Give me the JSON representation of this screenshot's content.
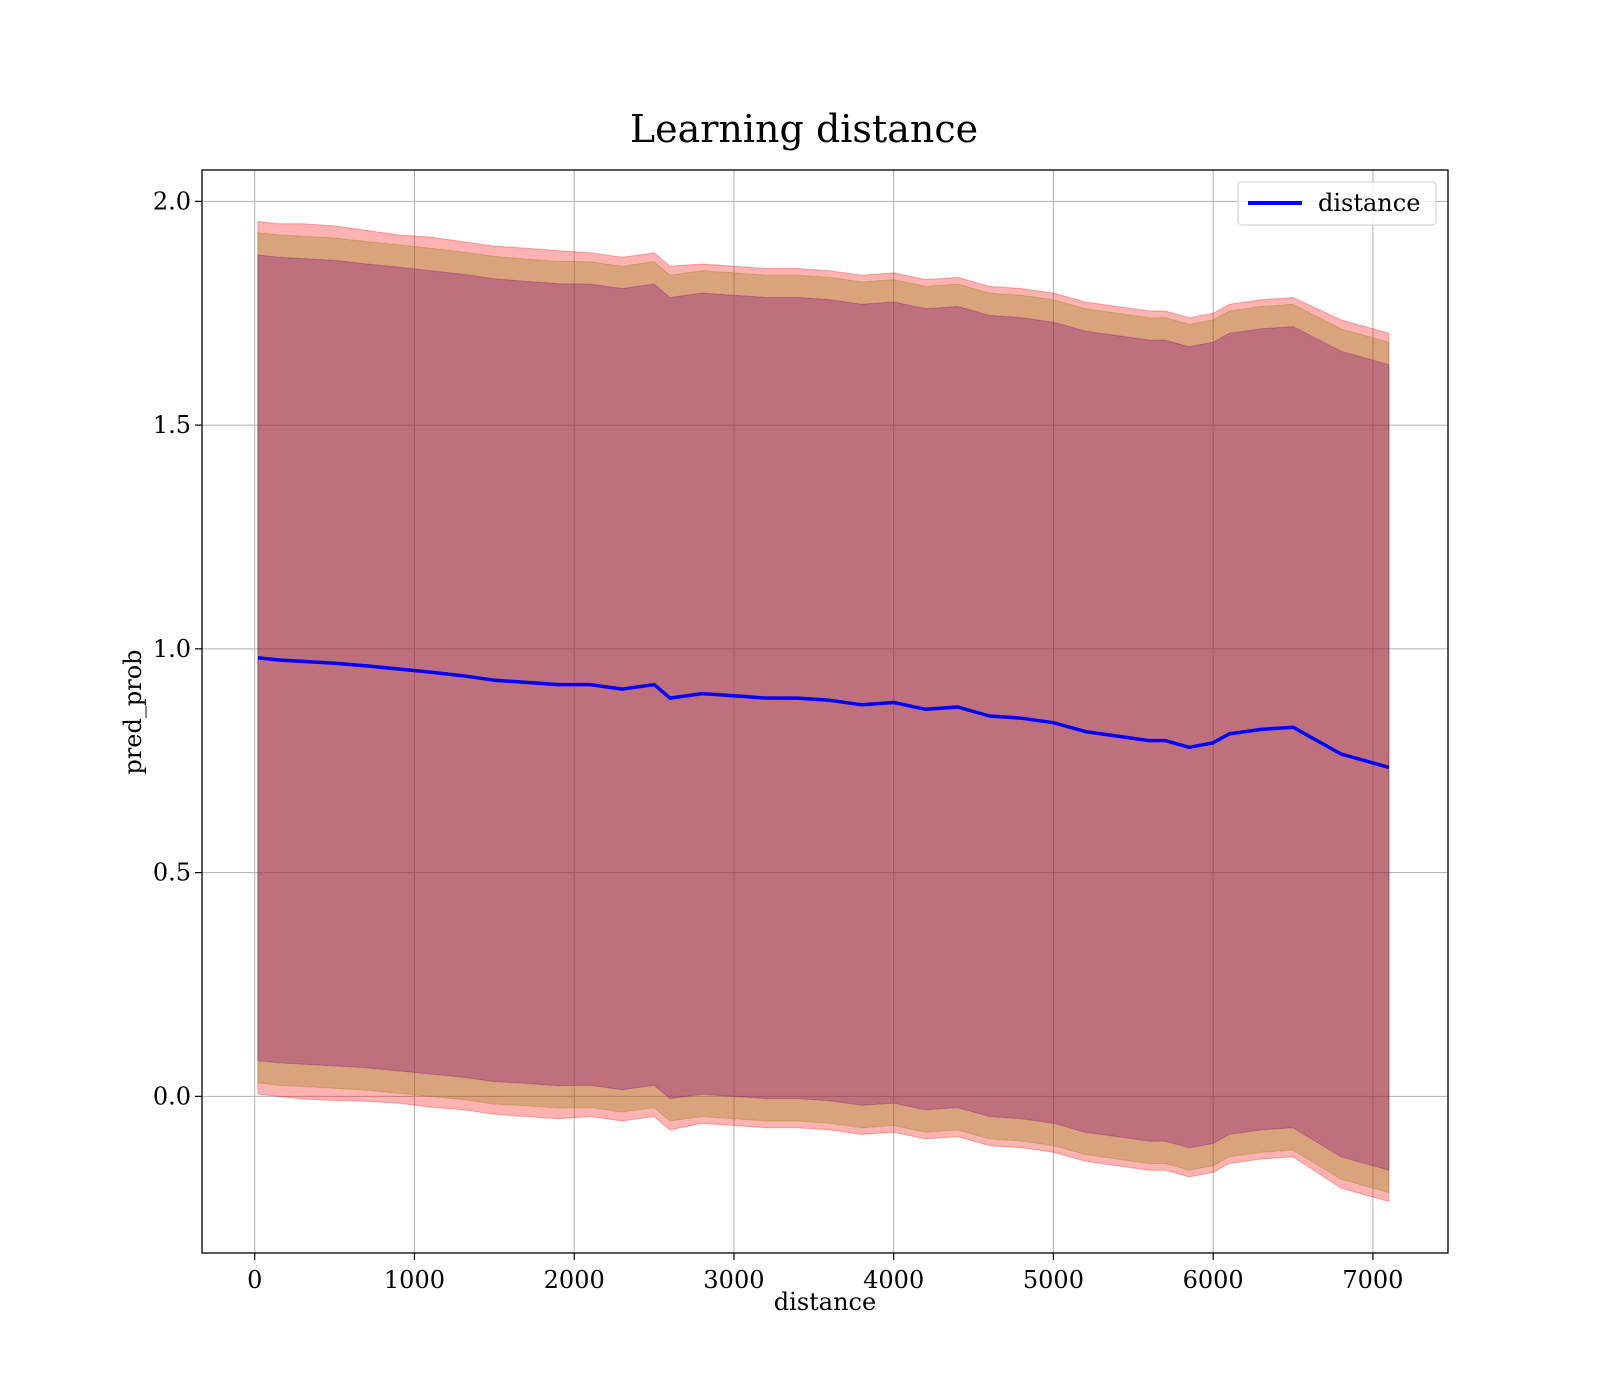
{
  "chart_data": {
    "type": "line",
    "title": "Learning distance",
    "xlabel": "distance",
    "ylabel": "pred_prob",
    "xlim": [
      -330,
      7470
    ],
    "ylim": [
      -0.35,
      2.07
    ],
    "xticks": [
      0,
      1000,
      2000,
      3000,
      4000,
      5000,
      6000,
      7000
    ],
    "xtick_labels": [
      "0",
      "1000",
      "2000",
      "3000",
      "4000",
      "5000",
      "6000",
      "7000"
    ],
    "yticks": [
      0.0,
      0.5,
      1.0,
      1.5,
      2.0
    ],
    "ytick_labels": [
      "0.0",
      "0.5",
      "1.0",
      "1.5",
      "2.0"
    ],
    "grid": true,
    "legend": {
      "position": "top-right",
      "entries": [
        "distance"
      ]
    },
    "series": [
      {
        "name": "distance",
        "color": "#0000ff",
        "x": [
          20,
          150,
          300,
          500,
          700,
          900,
          1100,
          1300,
          1500,
          1700,
          1900,
          2100,
          2300,
          2500,
          2600,
          2800,
          3000,
          3200,
          3400,
          3600,
          3800,
          4000,
          4200,
          4400,
          4600,
          4800,
          5000,
          5200,
          5400,
          5600,
          5700,
          5850,
          6000,
          6100,
          6300,
          6500,
          6800,
          7100
        ],
        "y": [
          0.98,
          0.975,
          0.972,
          0.968,
          0.962,
          0.955,
          0.948,
          0.94,
          0.93,
          0.925,
          0.92,
          0.92,
          0.91,
          0.92,
          0.89,
          0.9,
          0.895,
          0.89,
          0.89,
          0.885,
          0.875,
          0.88,
          0.865,
          0.87,
          0.85,
          0.845,
          0.835,
          0.815,
          0.805,
          0.795,
          0.795,
          0.78,
          0.79,
          0.81,
          0.82,
          0.825,
          0.765,
          0.735
        ]
      }
    ],
    "bands": [
      {
        "color": "#ff0000",
        "opacity": 0.3,
        "x": [
          20,
          150,
          300,
          500,
          700,
          900,
          1100,
          1300,
          1500,
          1700,
          1900,
          2100,
          2300,
          2500,
          2600,
          2800,
          3000,
          3200,
          3400,
          3600,
          3800,
          4000,
          4200,
          4400,
          4600,
          4800,
          5000,
          5200,
          5400,
          5600,
          5700,
          5850,
          6000,
          6100,
          6300,
          6500,
          6800,
          7100
        ],
        "upper": [
          1.955,
          1.95,
          1.95,
          1.945,
          1.935,
          1.925,
          1.92,
          1.91,
          1.9,
          1.895,
          1.89,
          1.885,
          1.875,
          1.885,
          1.855,
          1.86,
          1.855,
          1.85,
          1.85,
          1.845,
          1.835,
          1.84,
          1.825,
          1.83,
          1.81,
          1.805,
          1.795,
          1.775,
          1.765,
          1.755,
          1.755,
          1.74,
          1.75,
          1.77,
          1.78,
          1.785,
          1.735,
          1.705
        ],
        "lower": [
          0.005,
          0.0,
          -0.006,
          -0.009,
          -0.011,
          -0.015,
          -0.024,
          -0.03,
          -0.04,
          -0.045,
          -0.05,
          -0.045,
          -0.055,
          -0.045,
          -0.075,
          -0.06,
          -0.065,
          -0.07,
          -0.07,
          -0.075,
          -0.085,
          -0.08,
          -0.095,
          -0.09,
          -0.11,
          -0.115,
          -0.125,
          -0.145,
          -0.155,
          -0.165,
          -0.165,
          -0.18,
          -0.17,
          -0.15,
          -0.14,
          -0.135,
          -0.205,
          -0.235
        ]
      },
      {
        "color": "#808000",
        "opacity": 0.3,
        "x": [
          20,
          150,
          300,
          500,
          700,
          900,
          1100,
          1300,
          1500,
          1700,
          1900,
          2100,
          2300,
          2500,
          2600,
          2800,
          3000,
          3200,
          3400,
          3600,
          3800,
          4000,
          4200,
          4400,
          4600,
          4800,
          5000,
          5200,
          5400,
          5600,
          5700,
          5850,
          6000,
          6100,
          6300,
          6500,
          6800,
          7100
        ],
        "upper": [
          1.93,
          1.925,
          1.922,
          1.918,
          1.91,
          1.903,
          1.895,
          1.887,
          1.877,
          1.871,
          1.866,
          1.865,
          1.855,
          1.865,
          1.835,
          1.845,
          1.84,
          1.835,
          1.835,
          1.83,
          1.82,
          1.825,
          1.81,
          1.815,
          1.795,
          1.79,
          1.78,
          1.76,
          1.75,
          1.74,
          1.74,
          1.725,
          1.735,
          1.755,
          1.765,
          1.77,
          1.715,
          1.685
        ],
        "lower": [
          0.03,
          0.025,
          0.022,
          0.018,
          0.014,
          0.007,
          0.0,
          -0.007,
          -0.017,
          -0.021,
          -0.026,
          -0.025,
          -0.035,
          -0.025,
          -0.055,
          -0.045,
          -0.05,
          -0.055,
          -0.055,
          -0.06,
          -0.07,
          -0.065,
          -0.08,
          -0.075,
          -0.095,
          -0.1,
          -0.11,
          -0.13,
          -0.14,
          -0.15,
          -0.15,
          -0.165,
          -0.155,
          -0.135,
          -0.125,
          -0.12,
          -0.185,
          -0.215
        ]
      },
      {
        "color": "#800080",
        "opacity": 0.3,
        "x": [
          20,
          150,
          300,
          500,
          700,
          900,
          1100,
          1300,
          1500,
          1700,
          1900,
          2100,
          2300,
          2500,
          2600,
          2800,
          3000,
          3200,
          3400,
          3600,
          3800,
          4000,
          4200,
          4400,
          4600,
          4800,
          5000,
          5200,
          5400,
          5600,
          5700,
          5850,
          6000,
          6100,
          6300,
          6500,
          6800,
          7100
        ],
        "upper": [
          1.88,
          1.875,
          1.872,
          1.868,
          1.86,
          1.853,
          1.845,
          1.837,
          1.827,
          1.821,
          1.816,
          1.815,
          1.805,
          1.815,
          1.785,
          1.795,
          1.79,
          1.785,
          1.785,
          1.78,
          1.77,
          1.775,
          1.76,
          1.765,
          1.745,
          1.74,
          1.73,
          1.71,
          1.7,
          1.69,
          1.69,
          1.675,
          1.685,
          1.705,
          1.715,
          1.72,
          1.665,
          1.635
        ],
        "lower": [
          0.08,
          0.075,
          0.072,
          0.068,
          0.064,
          0.057,
          0.05,
          0.043,
          0.033,
          0.029,
          0.024,
          0.025,
          0.015,
          0.025,
          -0.005,
          0.005,
          0.0,
          -0.005,
          -0.005,
          -0.01,
          -0.02,
          -0.015,
          -0.03,
          -0.025,
          -0.045,
          -0.05,
          -0.06,
          -0.08,
          -0.09,
          -0.1,
          -0.1,
          -0.115,
          -0.105,
          -0.085,
          -0.075,
          -0.07,
          -0.135,
          -0.165
        ]
      }
    ]
  }
}
